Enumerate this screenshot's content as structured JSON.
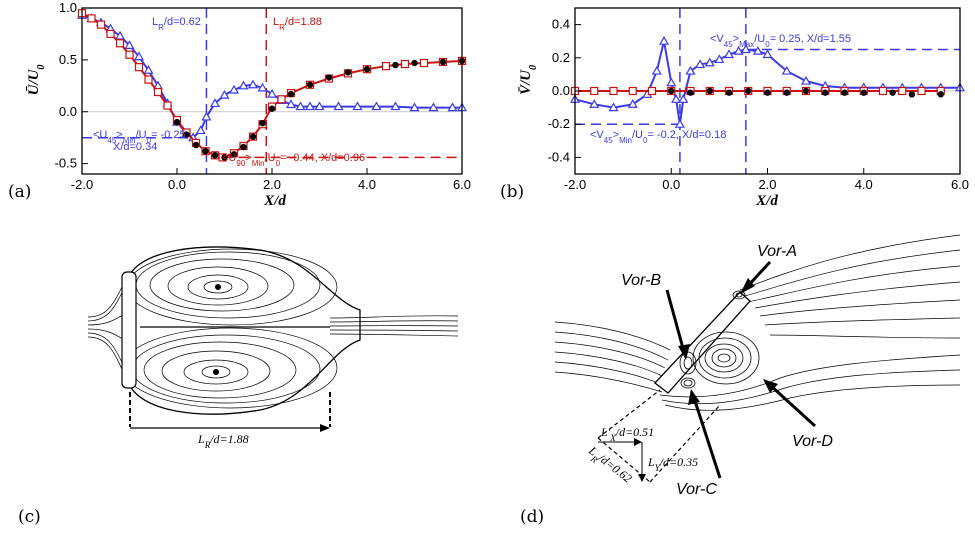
{
  "colors": {
    "blue": "#3a3ae8",
    "red": "#cc1111",
    "black": "#000000"
  },
  "chart_data": [
    {
      "id": "a",
      "type": "line",
      "panel_label": "(a)",
      "xlabel": "X/d",
      "ylabel": "Ū/U₀",
      "xlim": [
        -2.0,
        6.0
      ],
      "ylim": [
        -0.6,
        1.0
      ],
      "xticks": [
        "-2.0",
        "0.0",
        "2.0",
        "4.0",
        "6.0"
      ],
      "xtick_values": [
        -2,
        0,
        2,
        4,
        6
      ],
      "yticks": [
        "-0.5",
        "0.0",
        "0.5",
        "1.0"
      ],
      "ytick_values": [
        -0.5,
        0,
        0.5,
        1.0
      ],
      "series": [
        {
          "marker": "triangle",
          "color": "#3a3ae8",
          "x": [
            -2.0,
            -1.8,
            -1.6,
            -1.4,
            -1.2,
            -1.0,
            -0.8,
            -0.6,
            -0.4,
            -0.2,
            0.0,
            0.2,
            0.34,
            0.5,
            0.62,
            0.8,
            1.0,
            1.2,
            1.4,
            1.6,
            1.8,
            2.0,
            2.2,
            2.4,
            2.6,
            2.8,
            3.0,
            3.4,
            3.8,
            4.2,
            4.6,
            5.0,
            5.4,
            5.8,
            6.0
          ],
          "y": [
            0.93,
            0.9,
            0.86,
            0.8,
            0.73,
            0.64,
            0.53,
            0.4,
            0.25,
            0.08,
            -0.1,
            -0.21,
            -0.25,
            -0.18,
            -0.05,
            0.08,
            0.16,
            0.21,
            0.25,
            0.26,
            0.23,
            0.17,
            0.11,
            0.07,
            0.05,
            0.05,
            0.05,
            0.05,
            0.05,
            0.05,
            0.05,
            0.04,
            0.04,
            0.04,
            0.04
          ]
        },
        {
          "marker": "square",
          "color": "#cc1111",
          "x": [
            -2.0,
            -1.8,
            -1.6,
            -1.4,
            -1.2,
            -1.0,
            -0.8,
            -0.6,
            -0.4,
            -0.2,
            0.0,
            0.2,
            0.4,
            0.6,
            0.8,
            0.96,
            1.2,
            1.4,
            1.6,
            1.8,
            2.0,
            2.2,
            2.4,
            2.8,
            3.2,
            3.6,
            4.0,
            4.4,
            4.8,
            5.2,
            5.6,
            6.0
          ],
          "y": [
            0.95,
            0.9,
            0.84,
            0.75,
            0.66,
            0.55,
            0.43,
            0.31,
            0.19,
            0.06,
            -0.08,
            -0.2,
            -0.3,
            -0.38,
            -0.42,
            -0.44,
            -0.4,
            -0.33,
            -0.24,
            -0.12,
            0.05,
            0.12,
            0.18,
            0.26,
            0.32,
            0.37,
            0.41,
            0.44,
            0.46,
            0.47,
            0.48,
            0.49
          ]
        },
        {
          "marker": "circle",
          "color": "#000000",
          "x": [
            0.0,
            0.2,
            0.4,
            0.6,
            0.8,
            1.0,
            1.2,
            1.4,
            1.6,
            1.8,
            2.0,
            2.4,
            2.8,
            3.2,
            3.6,
            4.0,
            4.6,
            5.0,
            5.6,
            6.0
          ],
          "y": [
            -0.1,
            -0.22,
            -0.32,
            -0.38,
            -0.42,
            -0.44,
            -0.41,
            -0.34,
            -0.24,
            -0.11,
            0.03,
            0.17,
            0.26,
            0.33,
            0.38,
            0.41,
            0.45,
            0.47,
            0.48,
            0.49
          ]
        }
      ],
      "ref_lines": [
        {
          "orient": "v",
          "at": 0.62,
          "color": "#3a3ae8"
        },
        {
          "orient": "v",
          "at": 1.88,
          "color": "#cc1111"
        },
        {
          "orient": "h",
          "at": -0.25,
          "x_to": 0.34,
          "color": "#3a3ae8"
        },
        {
          "orient": "h",
          "at": -0.44,
          "x_from": 0.96,
          "color": "#cc1111"
        }
      ],
      "annotations": {
        "lr_blue": "L_R/d=0.62",
        "lr_red": "L_R/d=1.88",
        "u45_min_line1": "<U_45>_Min/U_0= -0.25,",
        "u45_min_line2": "X/d=0.34",
        "u90_min_line1": "<U_90>_Min/U_0= -0.44, X/d=0.96"
      }
    },
    {
      "id": "b",
      "type": "line",
      "panel_label": "(b)",
      "xlabel": "X/d",
      "ylabel": "V̄/U₀",
      "xlim": [
        -2.0,
        6.0
      ],
      "ylim": [
        -0.5,
        0.5
      ],
      "xticks": [
        "-2.0",
        "0.0",
        "2.0",
        "4.0",
        "6.0"
      ],
      "xtick_values": [
        -2,
        0,
        2,
        4,
        6
      ],
      "yticks": [
        "-0.4",
        "-0.2",
        "0.0",
        "0.2",
        "0.4"
      ],
      "ytick_values": [
        -0.4,
        -0.2,
        0,
        0.2,
        0.4
      ],
      "series": [
        {
          "marker": "triangle",
          "color": "#3a3ae8",
          "x": [
            -2.0,
            -1.6,
            -1.2,
            -0.8,
            -0.5,
            -0.3,
            -0.15,
            0.0,
            0.1,
            0.18,
            0.25,
            0.4,
            0.6,
            0.8,
            1.0,
            1.2,
            1.4,
            1.55,
            1.8,
            2.0,
            2.4,
            2.8,
            3.2,
            3.6,
            4.0,
            4.4,
            4.8,
            5.2,
            5.6,
            6.0
          ],
          "y": [
            -0.05,
            -0.08,
            -0.1,
            -0.08,
            -0.02,
            0.12,
            0.3,
            0.05,
            -0.05,
            -0.2,
            -0.05,
            0.12,
            0.16,
            0.17,
            0.19,
            0.22,
            0.24,
            0.25,
            0.24,
            0.22,
            0.12,
            0.06,
            0.03,
            0.02,
            0.02,
            0.02,
            0.02,
            0.02,
            0.02,
            0.02
          ]
        },
        {
          "marker": "square",
          "color": "#cc1111",
          "x": [
            -2.0,
            -1.6,
            -1.2,
            -0.8,
            -0.4,
            0.0,
            0.4,
            0.8,
            1.2,
            1.6,
            2.0,
            2.4,
            2.8,
            3.2,
            3.6,
            4.0,
            4.4,
            4.8,
            5.2,
            5.6
          ],
          "y": [
            0.0,
            0.0,
            0.0,
            0.0,
            0.0,
            0.0,
            0.0,
            0.0,
            0.0,
            0.0,
            0.0,
            0.0,
            0.0,
            0.0,
            0.0,
            0.0,
            0.0,
            0.0,
            0.0,
            0.0
          ]
        },
        {
          "marker": "circle",
          "color": "#000000",
          "x": [
            0.0,
            0.4,
            0.8,
            1.2,
            1.6,
            2.0,
            2.4,
            2.8,
            3.2,
            3.6,
            4.0,
            4.6,
            5.0,
            5.6
          ],
          "y": [
            0.0,
            -0.01,
            0.0,
            -0.01,
            0.0,
            -0.01,
            -0.01,
            0.0,
            -0.01,
            -0.01,
            -0.01,
            -0.01,
            -0.02,
            -0.02
          ]
        }
      ],
      "ref_lines": [
        {
          "orient": "v",
          "at": 0.18,
          "color": "#3a3ae8"
        },
        {
          "orient": "v",
          "at": 1.55,
          "color": "#3a3ae8"
        },
        {
          "orient": "h",
          "at": 0.25,
          "x_from": 1.55,
          "color": "#3a3ae8"
        },
        {
          "orient": "h",
          "at": -0.2,
          "x_to": 0.18,
          "color": "#3a3ae8"
        }
      ],
      "annotations": {
        "v45_max": "<V_45>_Max/U_0= 0.25, X/d=1.55",
        "v45_min": "<V_45>_Min/U_0= -0.2, X/d=0.18"
      }
    }
  ],
  "panel_c": {
    "label": "(c)",
    "length_label": "L_R/d=1.88"
  },
  "panel_d": {
    "label": "(d)",
    "vortices": [
      "Vor-A",
      "Vor-B",
      "Vor-C",
      "Vor-D"
    ],
    "lengths": [
      "L'_X/d=0.51",
      "L_Y/d=0.35",
      "L_R/d=0.62"
    ]
  }
}
